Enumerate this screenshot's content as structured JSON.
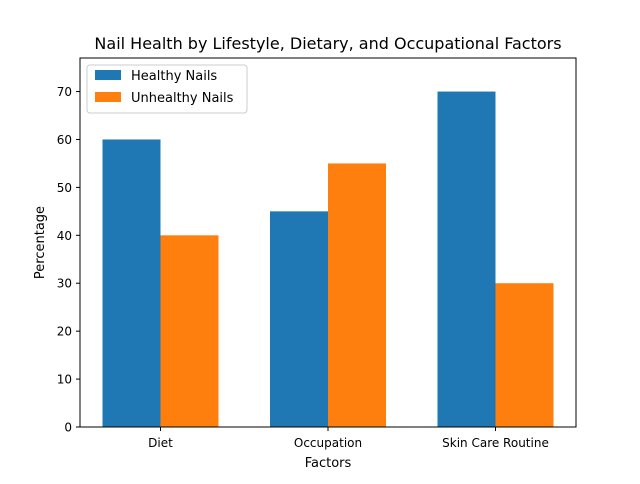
{
  "chart_data": {
    "type": "bar",
    "title": "Nail Health by Lifestyle, Dietary, and Occupational Factors",
    "xlabel": "Factors",
    "ylabel": "Percentage",
    "categories": [
      "Diet",
      "Occupation",
      "Skin Care Routine"
    ],
    "series": [
      {
        "name": "Healthy Nails",
        "values": [
          60,
          45,
          70
        ],
        "color": "#1f77b4"
      },
      {
        "name": "Unhealthy Nails",
        "values": [
          40,
          55,
          30
        ],
        "color": "#ff7f0e"
      }
    ],
    "ylim": [
      0,
      77
    ],
    "yticks": [
      0,
      10,
      20,
      30,
      40,
      50,
      60,
      70
    ],
    "grid": false,
    "legend_position": "top-left"
  }
}
